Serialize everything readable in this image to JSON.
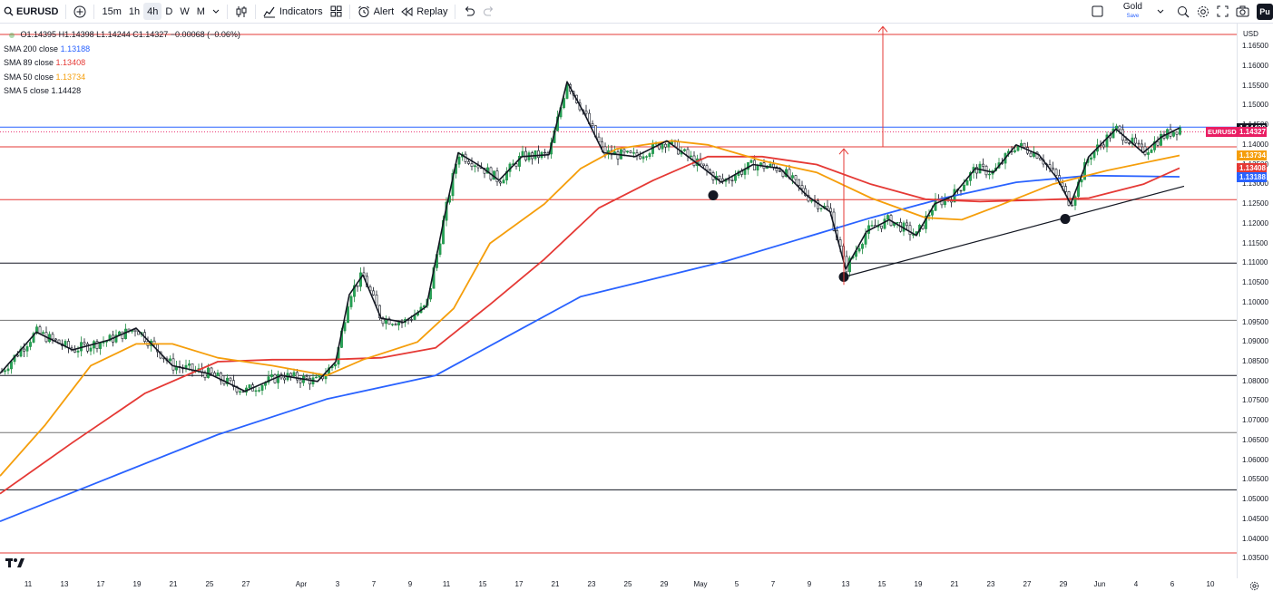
{
  "toolbar": {
    "symbol": "EURUSD",
    "intervals": [
      "15m",
      "1h",
      "4h",
      "D",
      "W",
      "M"
    ],
    "active_interval": "4h",
    "indicators_label": "Indicators",
    "alert_label": "Alert",
    "replay_label": "Replay",
    "layout_name": "Gold",
    "save_label": "Save",
    "profile_label": "Pu"
  },
  "ohlc": {
    "o_label": "O",
    "o": "1.14395",
    "h_label": "H",
    "h": "1.14398",
    "l_label": "L",
    "l": "1.14244",
    "c_label": "C",
    "c": "1.14327",
    "change": "−0.00068 (−0.06%)"
  },
  "legend": [
    {
      "label": "SMA 200 close",
      "value": "1.13188",
      "color": "#2962ff"
    },
    {
      "label": "SMA 89 close",
      "value": "1.13408",
      "color": "#e53935"
    },
    {
      "label": "SMA 50 close",
      "value": "1.13734",
      "color": "#f59e0b"
    },
    {
      "label": "SMA 5 close",
      "value": "1.14428",
      "color": "#131722"
    }
  ],
  "price_axis": {
    "currency": "USD",
    "ticks": [
      "1.16500",
      "1.16000",
      "1.15500",
      "1.15000",
      "1.14500",
      "1.14000",
      "1.13500",
      "1.13000",
      "1.12500",
      "1.12000",
      "1.11500",
      "1.11000",
      "1.10500",
      "1.10000",
      "1.09500",
      "1.09000",
      "1.08500",
      "1.08000",
      "1.07500",
      "1.07000",
      "1.06500",
      "1.06000",
      "1.05500",
      "1.05000",
      "1.04500",
      "1.04000",
      "1.03500"
    ]
  },
  "price_tags": [
    {
      "id": "sma5",
      "text": "1.14428",
      "color": "#131722"
    },
    {
      "id": "last",
      "text": "1.14327",
      "color": "#e91e63",
      "symbol": "EURUSD"
    },
    {
      "id": "sma50",
      "text": "1.13734",
      "color": "#f59e0b"
    },
    {
      "id": "sma89",
      "text": "1.13408",
      "color": "#e53935"
    },
    {
      "id": "sma200",
      "text": "1.13188",
      "color": "#2962ff"
    }
  ],
  "time_axis": [
    "11",
    "13",
    "17",
    "19",
    "21",
    "25",
    "27",
    "Apr",
    "3",
    "7",
    "9",
    "11",
    "15",
    "17",
    "21",
    "23",
    "25",
    "29",
    "May",
    "5",
    "7",
    "9",
    "13",
    "15",
    "19",
    "21",
    "23",
    "27",
    "29",
    "Jun",
    "4",
    "6",
    "10"
  ],
  "chart_data": {
    "type": "candlestick",
    "symbol": "EURUSD",
    "interval": "4h",
    "currency": "USD",
    "ylim": [
      1.0335,
      1.168
    ],
    "x_range": [
      "Mar 10",
      "Jun 10"
    ],
    "series": [
      {
        "name": "SMA 200 close",
        "last": 1.13188,
        "color": "#2962ff",
        "points": [
          [
            0,
            1.0445
          ],
          [
            120,
            1.0555
          ],
          [
            240,
            1.0665
          ],
          [
            360,
            1.0755
          ],
          [
            480,
            1.0815
          ],
          [
            560,
            1.0915
          ],
          [
            640,
            1.1015
          ],
          [
            720,
            1.106
          ],
          [
            800,
            1.1105
          ],
          [
            880,
            1.116
          ],
          [
            960,
            1.1215
          ],
          [
            1040,
            1.1265
          ],
          [
            1120,
            1.1305
          ],
          [
            1200,
            1.1322
          ],
          [
            1300,
            1.1319
          ]
        ]
      },
      {
        "name": "SMA 89 close",
        "last": 1.13408,
        "color": "#e53935",
        "points": [
          [
            0,
            1.0515
          ],
          [
            80,
            1.0645
          ],
          [
            160,
            1.077
          ],
          [
            240,
            1.085
          ],
          [
            300,
            1.0855
          ],
          [
            360,
            1.0855
          ],
          [
            420,
            1.086
          ],
          [
            480,
            1.0885
          ],
          [
            540,
            1.0995
          ],
          [
            600,
            1.111
          ],
          [
            660,
            1.124
          ],
          [
            720,
            1.131
          ],
          [
            780,
            1.137
          ],
          [
            840,
            1.137
          ],
          [
            900,
            1.135
          ],
          [
            960,
            1.13
          ],
          [
            1020,
            1.1262
          ],
          [
            1080,
            1.1256
          ],
          [
            1140,
            1.126
          ],
          [
            1200,
            1.1265
          ],
          [
            1260,
            1.13
          ],
          [
            1300,
            1.1341
          ]
        ]
      },
      {
        "name": "SMA 50 close",
        "last": 1.13734,
        "color": "#f59e0b",
        "points": [
          [
            0,
            1.056
          ],
          [
            50,
            1.069
          ],
          [
            100,
            1.084
          ],
          [
            150,
            1.0895
          ],
          [
            190,
            1.0895
          ],
          [
            240,
            1.086
          ],
          [
            300,
            1.084
          ],
          [
            360,
            1.0815
          ],
          [
            400,
            1.0855
          ],
          [
            460,
            1.09
          ],
          [
            500,
            1.0985
          ],
          [
            540,
            1.115
          ],
          [
            600,
            1.125
          ],
          [
            640,
            1.134
          ],
          [
            680,
            1.139
          ],
          [
            740,
            1.141
          ],
          [
            780,
            1.14
          ],
          [
            840,
            1.136
          ],
          [
            900,
            1.133
          ],
          [
            960,
            1.1265
          ],
          [
            1020,
            1.1215
          ],
          [
            1060,
            1.121
          ],
          [
            1100,
            1.1245
          ],
          [
            1160,
            1.13
          ],
          [
            1220,
            1.1335
          ],
          [
            1300,
            1.1373
          ]
        ]
      },
      {
        "name": "SMA 5 close",
        "last": 1.14428,
        "color": "#131722",
        "points": [
          [
            0,
            1.082
          ],
          [
            40,
            1.0925
          ],
          [
            80,
            1.088
          ],
          [
            120,
            1.0905
          ],
          [
            150,
            1.0935
          ],
          [
            190,
            1.084
          ],
          [
            230,
            1.082
          ],
          [
            270,
            1.0775
          ],
          [
            310,
            1.0815
          ],
          [
            350,
            1.08
          ],
          [
            370,
            1.085
          ],
          [
            385,
            1.102
          ],
          [
            400,
            1.107
          ],
          [
            420,
            1.096
          ],
          [
            445,
            1.095
          ],
          [
            470,
            1.099
          ],
          [
            490,
            1.122
          ],
          [
            505,
            1.138
          ],
          [
            530,
            1.1345
          ],
          [
            550,
            1.131
          ],
          [
            575,
            1.137
          ],
          [
            605,
            1.1375
          ],
          [
            625,
            1.156
          ],
          [
            645,
            1.1475
          ],
          [
            665,
            1.138
          ],
          [
            700,
            1.137
          ],
          [
            735,
            1.141
          ],
          [
            770,
            1.135
          ],
          [
            795,
            1.1305
          ],
          [
            830,
            1.135
          ],
          [
            860,
            1.134
          ],
          [
            890,
            1.127
          ],
          [
            915,
            1.123
          ],
          [
            932,
            1.1085
          ],
          [
            955,
            1.118
          ],
          [
            980,
            1.121
          ],
          [
            1010,
            1.117
          ],
          [
            1030,
            1.125
          ],
          [
            1050,
            1.127
          ],
          [
            1075,
            1.134
          ],
          [
            1095,
            1.133
          ],
          [
            1120,
            1.14
          ],
          [
            1145,
            1.1375
          ],
          [
            1165,
            1.1315
          ],
          [
            1180,
            1.125
          ],
          [
            1200,
            1.137
          ],
          [
            1230,
            1.144
          ],
          [
            1260,
            1.138
          ],
          [
            1280,
            1.142
          ],
          [
            1300,
            1.1443
          ]
        ]
      }
    ],
    "annotations": {
      "horizontal_lines": [
        {
          "price": 1.168,
          "color": "#e53935"
        },
        {
          "price": 1.1445,
          "color": "#2962ff"
        },
        {
          "price": 1.1395,
          "color": "#e53935"
        },
        {
          "price": 1.1261,
          "color": "#e53935"
        },
        {
          "price": 1.11,
          "color": "#131722"
        },
        {
          "price": 1.0955,
          "color": "#757575"
        },
        {
          "price": 1.0815,
          "color": "#131722"
        },
        {
          "price": 1.067,
          "color": "#757575"
        },
        {
          "price": 1.0525,
          "color": "#131722"
        },
        {
          "price": 1.0365,
          "color": "#e53935"
        }
      ],
      "trendline": {
        "from": [
          930,
          1.1065
        ],
        "to": [
          1305,
          1.1295
        ],
        "color": "#131722"
      },
      "pivot_dots": [
        [
          786,
          1.1272
        ],
        [
          930,
          1.1065
        ],
        [
          1174,
          1.1212
        ]
      ],
      "arrows": [
        {
          "x": 930,
          "from": 1.1045,
          "to": 1.139,
          "color": "#e53935"
        },
        {
          "x": 973,
          "from": 1.1395,
          "to": 1.17,
          "color": "#e53935"
        }
      ]
    }
  }
}
